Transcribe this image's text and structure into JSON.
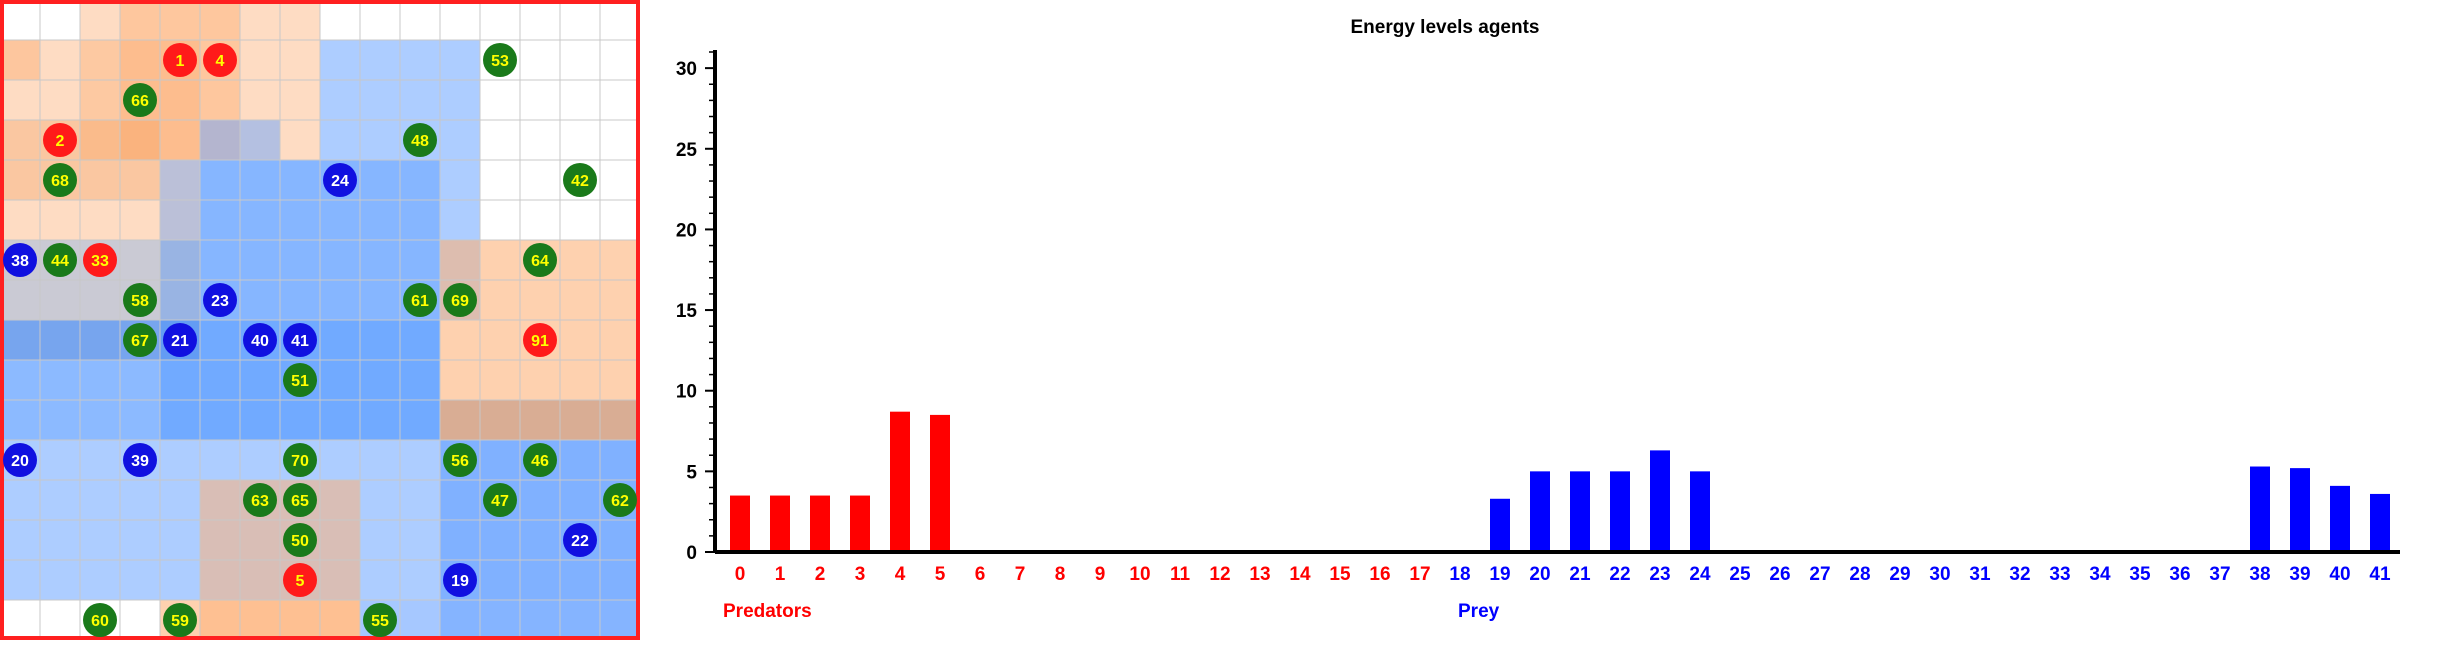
{
  "grid": {
    "cols": 16,
    "rows": 16,
    "background_color": "#ffffff",
    "grid_line_color": "#c8c8c8",
    "border_color": "#ff2020",
    "regions": [
      {
        "col": 0,
        "row": 1,
        "w": 1,
        "h": 1,
        "color": "#fdb27a",
        "opacity": 0.5
      },
      {
        "col": 2,
        "row": 0,
        "w": 6,
        "h": 4,
        "color": "#fdb27a",
        "opacity": 0.45
      },
      {
        "col": 3,
        "row": 0,
        "w": 3,
        "h": 4,
        "color": "#fdb27a",
        "opacity": 0.5
      },
      {
        "col": 0,
        "row": 1,
        "w": 5,
        "h": 5,
        "color": "#fdb27a",
        "opacity": 0.45
      },
      {
        "col": 0,
        "row": 3,
        "w": 4,
        "h": 2,
        "color": "#f4a060",
        "opacity": 0.35
      },
      {
        "col": 8,
        "row": 1,
        "w": 4,
        "h": 3,
        "color": "#6aa4ff",
        "opacity": 0.55
      },
      {
        "col": 5,
        "row": 3,
        "w": 2,
        "h": 1,
        "color": "#6aa4ff",
        "opacity": 0.5
      },
      {
        "col": 5,
        "row": 4,
        "w": 7,
        "h": 4,
        "color": "#6aa4ff",
        "opacity": 0.55
      },
      {
        "col": 0,
        "row": 6,
        "w": 5,
        "h": 3,
        "color": "#8a8aa0",
        "opacity": 0.45
      },
      {
        "col": 0,
        "row": 8,
        "w": 11,
        "h": 3,
        "color": "#3f8cff",
        "opacity": 0.6
      },
      {
        "col": 0,
        "row": 11,
        "w": 16,
        "h": 4,
        "color": "#6aa4ff",
        "opacity": 0.55
      },
      {
        "col": 4,
        "row": 4,
        "w": 7,
        "h": 7,
        "color": "#3f8cff",
        "opacity": 0.35
      },
      {
        "col": 11,
        "row": 6,
        "w": 5,
        "h": 5,
        "color": "#fdb27a",
        "opacity": 0.6
      },
      {
        "col": 11,
        "row": 10,
        "w": 5,
        "h": 1,
        "color": "#b48a7a",
        "opacity": 0.5
      },
      {
        "col": 5,
        "row": 12,
        "w": 4,
        "h": 4,
        "color": "#fdb27a",
        "opacity": 0.55
      },
      {
        "col": 11,
        "row": 11,
        "w": 5,
        "h": 5,
        "color": "#4a90ff",
        "opacity": 0.45
      },
      {
        "col": 0,
        "row": 15,
        "w": 5,
        "h": 1,
        "color": "#ffffff",
        "opacity": 1.0
      },
      {
        "col": 4,
        "row": 15,
        "w": 5,
        "h": 1,
        "color": "#fdb27a",
        "opacity": 0.6
      },
      {
        "col": 9,
        "row": 15,
        "w": 7,
        "h": 1,
        "color": "#6aa4ff",
        "opacity": 0.6
      }
    ],
    "agents": [
      {
        "id": "1",
        "kind": "predator",
        "col": 4,
        "row": 1
      },
      {
        "id": "4",
        "kind": "predator",
        "col": 5,
        "row": 1
      },
      {
        "id": "53",
        "kind": "plant",
        "col": 12,
        "row": 1
      },
      {
        "id": "66",
        "kind": "plant",
        "col": 3,
        "row": 2
      },
      {
        "id": "2",
        "kind": "predator",
        "col": 1,
        "row": 3
      },
      {
        "id": "48",
        "kind": "plant",
        "col": 10,
        "row": 3
      },
      {
        "id": "68",
        "kind": "plant",
        "col": 1,
        "row": 4
      },
      {
        "id": "24",
        "kind": "prey",
        "col": 8,
        "row": 4
      },
      {
        "id": "42",
        "kind": "plant",
        "col": 14,
        "row": 4
      },
      {
        "id": "38",
        "kind": "prey",
        "col": 0,
        "row": 6
      },
      {
        "id": "44",
        "kind": "plant",
        "col": 1,
        "row": 6
      },
      {
        "id": "33",
        "kind": "predator",
        "col": 2,
        "row": 6
      },
      {
        "id": "64",
        "kind": "plant",
        "col": 13,
        "row": 6
      },
      {
        "id": "58",
        "kind": "plant",
        "col": 3,
        "row": 7
      },
      {
        "id": "23",
        "kind": "prey",
        "col": 5,
        "row": 7
      },
      {
        "id": "61",
        "kind": "plant",
        "col": 10,
        "row": 7
      },
      {
        "id": "69",
        "kind": "plant",
        "col": 11,
        "row": 7
      },
      {
        "id": "67",
        "kind": "plant",
        "col": 3,
        "row": 8
      },
      {
        "id": "21",
        "kind": "prey",
        "col": 4,
        "row": 8
      },
      {
        "id": "40",
        "kind": "prey",
        "col": 6,
        "row": 8
      },
      {
        "id": "41",
        "kind": "prey",
        "col": 7,
        "row": 8
      },
      {
        "id": "91",
        "kind": "predator",
        "col": 13,
        "row": 8
      },
      {
        "id": "51",
        "kind": "plant",
        "col": 7,
        "row": 9
      },
      {
        "id": "20",
        "kind": "prey",
        "col": 0,
        "row": 11
      },
      {
        "id": "39",
        "kind": "prey",
        "col": 3,
        "row": 11
      },
      {
        "id": "70",
        "kind": "plant",
        "col": 7,
        "row": 11
      },
      {
        "id": "56",
        "kind": "plant",
        "col": 11,
        "row": 11
      },
      {
        "id": "46",
        "kind": "plant",
        "col": 13,
        "row": 11
      },
      {
        "id": "63",
        "kind": "plant",
        "col": 6,
        "row": 12
      },
      {
        "id": "65",
        "kind": "plant",
        "col": 7,
        "row": 12
      },
      {
        "id": "47",
        "kind": "plant",
        "col": 12,
        "row": 12
      },
      {
        "id": "62",
        "kind": "plant",
        "col": 15,
        "row": 12
      },
      {
        "id": "50",
        "kind": "plant",
        "col": 7,
        "row": 13
      },
      {
        "id": "22",
        "kind": "prey",
        "col": 14,
        "row": 13
      },
      {
        "id": "5",
        "kind": "predator",
        "col": 7,
        "row": 14
      },
      {
        "id": "19",
        "kind": "prey",
        "col": 11,
        "row": 14
      },
      {
        "id": "60",
        "kind": "plant",
        "col": 2,
        "row": 15
      },
      {
        "id": "59",
        "kind": "plant",
        "col": 4,
        "row": 15
      },
      {
        "id": "55",
        "kind": "plant",
        "col": 9,
        "row": 15
      }
    ],
    "agent_styles": {
      "predator": {
        "fill": "#ff1a1a",
        "text": "#ffff00"
      },
      "prey": {
        "fill": "#1010e0",
        "text": "#ffffff"
      },
      "plant": {
        "fill": "#1a7a1a",
        "text": "#ffff00"
      }
    }
  },
  "chart_data": {
    "type": "bar",
    "title": "Energy levels agents",
    "categories": [
      "0",
      "1",
      "2",
      "3",
      "4",
      "5",
      "6",
      "7",
      "8",
      "9",
      "10",
      "11",
      "12",
      "13",
      "14",
      "15",
      "16",
      "17",
      "18",
      "19",
      "20",
      "21",
      "22",
      "23",
      "24",
      "25",
      "26",
      "27",
      "28",
      "29",
      "30",
      "31",
      "32",
      "33",
      "34",
      "35",
      "36",
      "37",
      "38",
      "39",
      "40",
      "41"
    ],
    "values": [
      3.5,
      3.5,
      3.5,
      3.5,
      8.7,
      8.5,
      0,
      0,
      0,
      0,
      0,
      0,
      0,
      0,
      0,
      0,
      0,
      0,
      0,
      3.3,
      5.0,
      5.0,
      5.0,
      6.3,
      5.0,
      0,
      0,
      0,
      0,
      0,
      0,
      0,
      0,
      0,
      0,
      0,
      0,
      0,
      5.3,
      5.2,
      4.1,
      3.6
    ],
    "groups": [
      {
        "label": "Predators",
        "from": 0,
        "to": 17,
        "color": "#ff0000"
      },
      {
        "label": "Prey",
        "from": 18,
        "to": 41,
        "color": "#0000ff"
      }
    ],
    "ylim": [
      0,
      31
    ],
    "yticks": [
      0,
      5,
      10,
      15,
      20,
      25,
      30
    ],
    "xlabel": "",
    "ylabel": "",
    "grid": false,
    "legend": "none"
  }
}
